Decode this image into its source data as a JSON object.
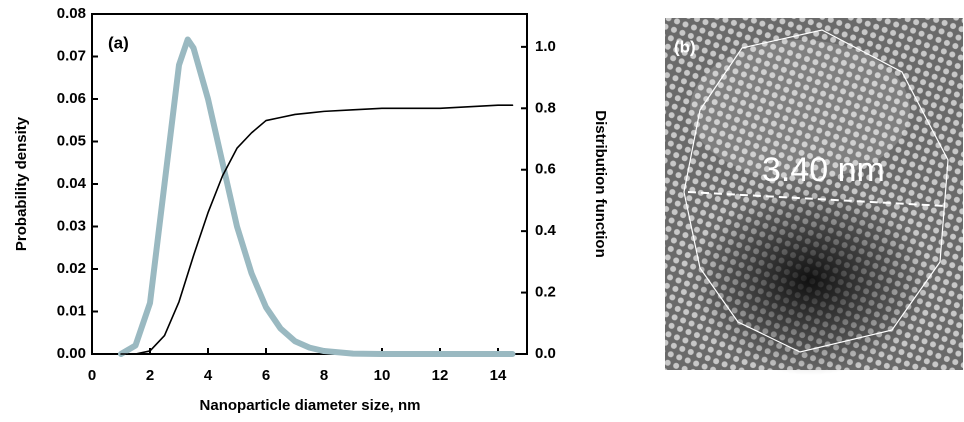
{
  "chart_data": {
    "type": "line",
    "xlabel": "Nanoparticle diameter size, nm",
    "ylabel": "Probability density",
    "y2label": "Distribution function",
    "annotation": "(a)",
    "x": [
      1,
      1.5,
      2,
      2.5,
      3,
      3.3,
      3.5,
      4,
      4.5,
      5,
      5.5,
      6,
      6.5,
      7,
      7.5,
      8,
      9,
      10,
      12,
      14,
      14.5
    ],
    "series": [
      {
        "color": "#9ab9c1",
        "values": [
          0,
          0.002,
          0.012,
          0.04,
          0.068,
          0.074,
          0.072,
          0.06,
          0.045,
          0.03,
          0.019,
          0.011,
          0.006,
          0.003,
          0.0015,
          0.0007,
          0.0001,
          0,
          0,
          0,
          0
        ]
      },
      {
        "color": "#000000",
        "axis": "y2",
        "values": [
          0,
          0,
          0.01,
          0.06,
          0.17,
          0.26,
          0.32,
          0.46,
          0.58,
          0.67,
          0.72,
          0.76,
          0.77,
          0.78,
          0.785,
          0.79,
          0.795,
          0.8,
          0.8,
          0.81,
          0.81
        ]
      }
    ],
    "xlim": [
      0,
      15
    ],
    "xticks": [
      0,
      2,
      4,
      6,
      8,
      10,
      12,
      14
    ],
    "ylim": [
      0,
      0.08
    ],
    "yticks": [
      {
        "value": 0,
        "label": "0.00"
      },
      {
        "value": 0.01,
        "label": "0.01"
      },
      {
        "value": 0.02,
        "label": "0.02"
      },
      {
        "value": 0.03,
        "label": "0.03"
      },
      {
        "value": 0.04,
        "label": "0.04"
      },
      {
        "value": 0.05,
        "label": "0.05"
      },
      {
        "value": 0.06,
        "label": "0.06"
      },
      {
        "value": 0.07,
        "label": "0.07"
      },
      {
        "value": 0.08,
        "label": "0.08"
      }
    ],
    "y2lim": [
      0,
      1.107
    ],
    "y2ticks": [
      {
        "value": 0,
        "label": "0.0"
      },
      {
        "value": 0.2,
        "label": "0.2"
      },
      {
        "value": 0.4,
        "label": "0.4"
      },
      {
        "value": 0.6,
        "label": "0.6"
      },
      {
        "value": 0.8,
        "label": "0.8"
      },
      {
        "value": 1,
        "label": "1.0"
      }
    ]
  },
  "micrograph": {
    "label": "(b)",
    "annotation": "3.40 nm"
  }
}
